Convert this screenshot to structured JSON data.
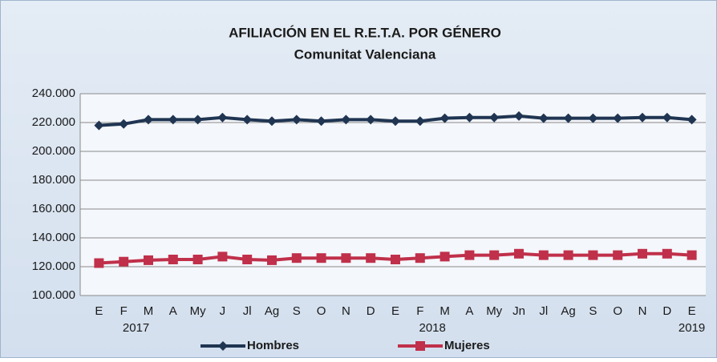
{
  "chart_data": {
    "type": "line",
    "title": "AFILIACIÓN  EN EL R.E.T.A. POR GÉNERO",
    "subtitle": "Comunitat Valenciana",
    "categories": [
      "E",
      "F",
      "M",
      "A",
      "My",
      "J",
      "Jl",
      "Ag",
      "S",
      "O",
      "N",
      "D",
      "E",
      "F",
      "M",
      "A",
      "My",
      "Jn",
      "Jl",
      "Ag",
      "S",
      "O",
      "N",
      "D",
      "E"
    ],
    "annotations": [
      "2017",
      "2018",
      "2019"
    ],
    "series": [
      {
        "name": "Hombres",
        "color": "#1f3552",
        "marker": "diamond",
        "values": [
          218000,
          219000,
          222000,
          222000,
          222000,
          223500,
          222000,
          221000,
          222000,
          221000,
          222000,
          222000,
          221000,
          221000,
          223000,
          223500,
          223500,
          224500,
          223000,
          223000,
          223000,
          223000,
          223500,
          223500,
          222000
        ]
      },
      {
        "name": "Mujeres",
        "color": "#c0304a",
        "marker": "square",
        "values": [
          122500,
          123500,
          124500,
          125000,
          125000,
          127000,
          125000,
          124500,
          126000,
          126000,
          126000,
          126000,
          125000,
          126000,
          127000,
          128000,
          128000,
          129000,
          128000,
          128000,
          128000,
          128000,
          129000,
          129000,
          128000
        ]
      }
    ],
    "ylim": [
      100000,
      240000
    ],
    "yticks": [
      {
        "value": 100000,
        "label": "100.000"
      },
      {
        "value": 120000,
        "label": "120.000"
      },
      {
        "value": 140000,
        "label": "140.000"
      },
      {
        "value": 160000,
        "label": "160.000"
      },
      {
        "value": 180000,
        "label": "180.000"
      },
      {
        "value": 200000,
        "label": "200.000"
      },
      {
        "value": 220000,
        "label": "220.000"
      },
      {
        "value": 240000,
        "label": "240.000"
      }
    ],
    "grid": true,
    "legend": "bottom"
  }
}
